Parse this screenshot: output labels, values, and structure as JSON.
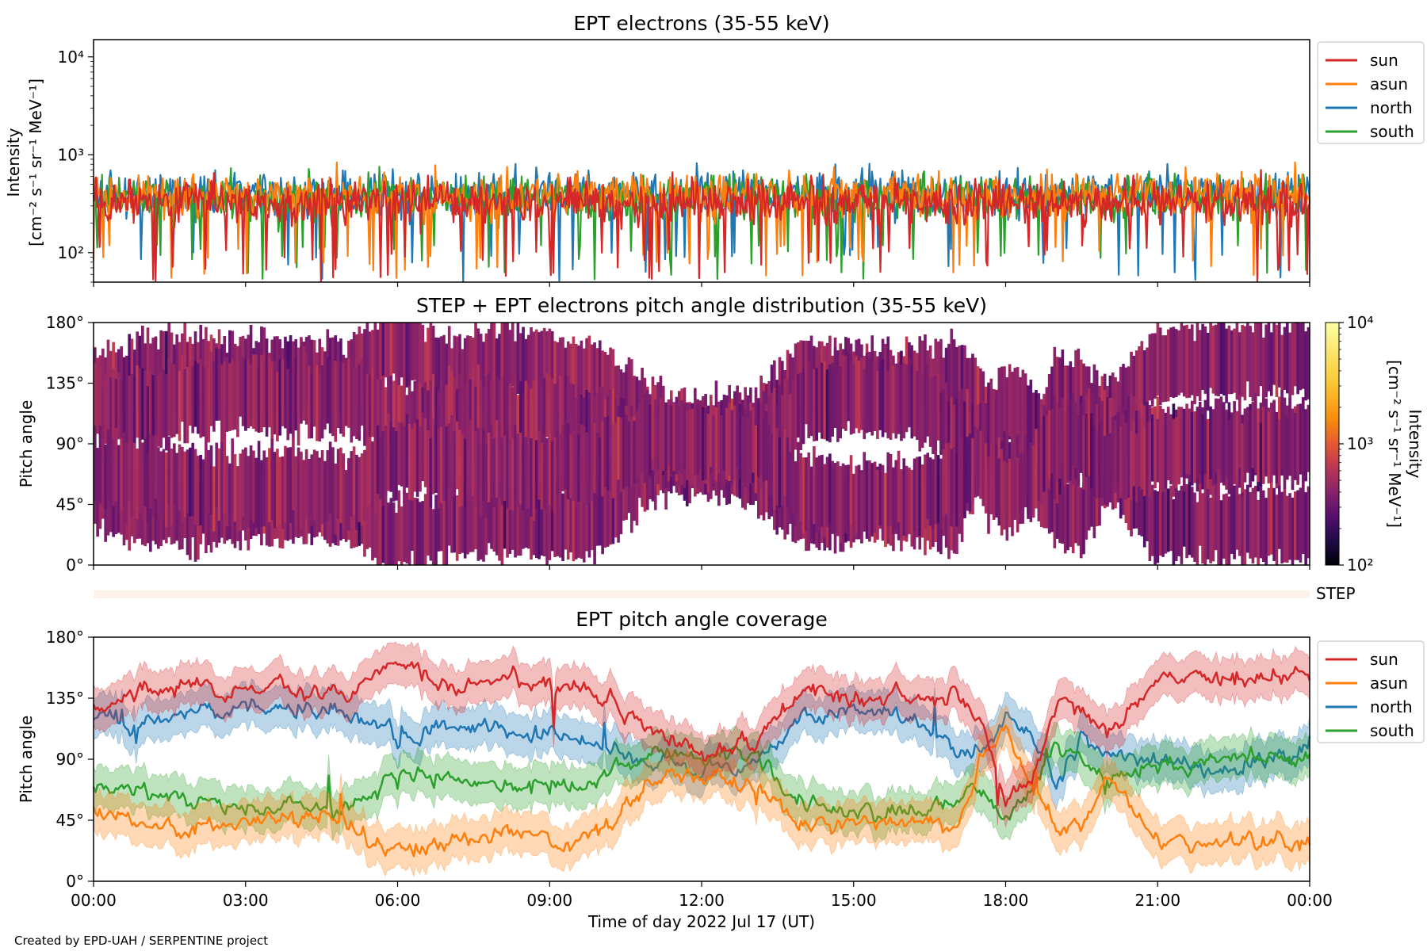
{
  "footer": {
    "credit": "Created by EPD-UAH / SERPENTINE project"
  },
  "chart_data": [
    {
      "type": "line",
      "title": "EPT electrons (35-55 keV)",
      "ylabel_lines": [
        "Intensity",
        "[cm⁻² s⁻¹ sr⁻¹ MeV⁻¹]"
      ],
      "yscale": "log",
      "ylim": [
        50,
        15000
      ],
      "yticks": [
        100,
        1000,
        10000
      ],
      "ytick_labels": [
        "10²",
        "10³",
        "10⁴"
      ],
      "xlim_hours": [
        0,
        24
      ],
      "legend": "outside-right-top",
      "series": [
        {
          "name": "sun",
          "color": "#d62728",
          "typical": 330,
          "min": 50,
          "max": 800
        },
        {
          "name": "asun",
          "color": "#ff7f0e",
          "typical": 380,
          "min": 50,
          "max": 900
        },
        {
          "name": "north",
          "color": "#1f77b4",
          "typical": 400,
          "min": 50,
          "max": 950
        },
        {
          "name": "south",
          "color": "#2ca02c",
          "typical": 370,
          "min": 50,
          "max": 1000
        }
      ]
    },
    {
      "type": "heatmap",
      "title": "STEP + EPT electrons pitch angle distribution (35-55 keV)",
      "ylabel": "Pitch angle",
      "ylim_deg": [
        0,
        180
      ],
      "yticks_deg": [
        0,
        45,
        90,
        135,
        180
      ],
      "ytick_labels": [
        "0°",
        "45°",
        "90°",
        "135°",
        "180°"
      ],
      "xlim_hours": [
        0,
        24
      ],
      "colorbar": {
        "label": "Intensity",
        "units": "[cm⁻² s⁻¹ sr⁻¹ MeV⁻¹]",
        "scale": "log",
        "range": [
          100,
          10000
        ],
        "tick_labels": [
          "10²",
          "10³",
          "10⁴"
        ],
        "colormap": "inferno"
      },
      "typical_intensity": 400
    },
    {
      "type": "heatmap-strip",
      "label": "STEP",
      "color": "#fff2ea"
    },
    {
      "type": "area",
      "title": "EPT pitch angle coverage",
      "ylabel": "Pitch angle",
      "xlabel": "Time of day 2022 Jul 17 (UT)",
      "ylim_deg": [
        0,
        180
      ],
      "yticks_deg": [
        0,
        45,
        90,
        135,
        180
      ],
      "ytick_labels": [
        "0°",
        "45°",
        "90°",
        "135°",
        "180°"
      ],
      "xlim_hours": [
        0,
        24
      ],
      "xticks_hours": [
        0,
        3,
        6,
        9,
        12,
        15,
        18,
        21,
        24
      ],
      "xtick_labels": [
        "00:00",
        "03:00",
        "06:00",
        "09:00",
        "12:00",
        "15:00",
        "18:00",
        "21:00",
        "00:00"
      ],
      "legend": "outside-right-top",
      "band_halfwidth_deg": 15,
      "series": [
        {
          "name": "sun",
          "color": "#d62728",
          "x": [
            0,
            1,
            2,
            3,
            4,
            5,
            6,
            7,
            8,
            9,
            10,
            11,
            12,
            13,
            14,
            15,
            16,
            17,
            17.5,
            18,
            18.5,
            19,
            19.5,
            20,
            21,
            22,
            23,
            24
          ],
          "y": [
            130,
            142,
            145,
            140,
            140,
            138,
            168,
            140,
            150,
            145,
            138,
            110,
            95,
            100,
            140,
            135,
            135,
            140,
            120,
            60,
            75,
            130,
            125,
            110,
            150,
            150,
            150,
            155
          ]
        },
        {
          "name": "asun",
          "color": "#ff7f0e",
          "x": [
            0,
            1,
            2,
            3,
            4,
            5,
            6,
            7,
            8,
            9,
            10,
            11,
            12,
            13,
            14,
            15,
            16,
            17,
            17.5,
            18,
            18.5,
            19,
            19.5,
            20,
            21,
            22,
            23,
            24
          ],
          "y": [
            55,
            40,
            40,
            45,
            45,
            45,
            20,
            30,
            35,
            30,
            35,
            75,
            80,
            70,
            40,
            45,
            45,
            35,
            90,
            110,
            70,
            40,
            40,
            75,
            30,
            30,
            30,
            30
          ]
        },
        {
          "name": "north",
          "color": "#1f77b4",
          "x": [
            0,
            1,
            2,
            3,
            4,
            5,
            6,
            7,
            8,
            9,
            10,
            11,
            12,
            13,
            14,
            15,
            16,
            17,
            17.5,
            18,
            18.5,
            19,
            19.5,
            20,
            21,
            22,
            23,
            24
          ],
          "y": [
            120,
            115,
            125,
            128,
            125,
            125,
            105,
            115,
            112,
            110,
            100,
            88,
            85,
            85,
            120,
            125,
            125,
            100,
            90,
            120,
            110,
            75,
            100,
            95,
            90,
            80,
            90,
            95
          ]
        },
        {
          "name": "south",
          "color": "#2ca02c",
          "x": [
            0,
            1,
            2,
            3,
            4,
            5,
            6,
            7,
            8,
            9,
            10,
            11,
            12,
            13,
            14,
            15,
            16,
            17,
            17.5,
            18,
            18.5,
            19,
            19.5,
            20,
            21,
            22,
            23,
            24
          ],
          "y": [
            70,
            65,
            60,
            55,
            55,
            55,
            80,
            75,
            70,
            70,
            75,
            95,
            92,
            90,
            55,
            50,
            50,
            60,
            70,
            50,
            60,
            100,
            90,
            75,
            85,
            90,
            90,
            90
          ]
        }
      ]
    }
  ]
}
